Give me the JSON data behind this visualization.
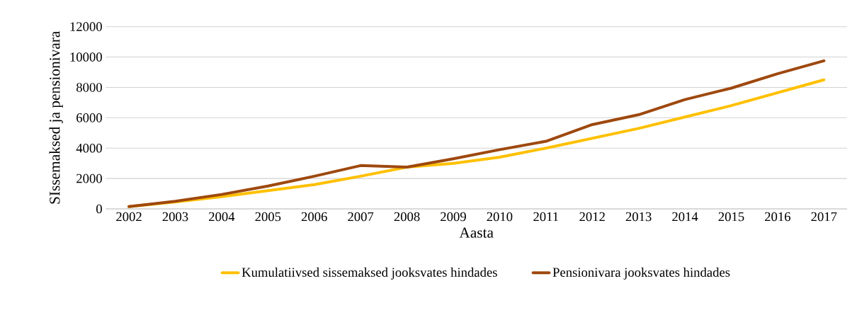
{
  "chart_data": {
    "type": "line",
    "xlabel": "Aasta",
    "ylabel": "SIssemaksed ja pensionivara",
    "categories": [
      "2002",
      "2003",
      "2004",
      "2005",
      "2006",
      "2007",
      "2008",
      "2009",
      "2010",
      "2011",
      "2012",
      "2013",
      "2014",
      "2015",
      "2016",
      "2017"
    ],
    "series": [
      {
        "name": "Kumulatiivsed sissemaksed jooksvates hindades",
        "color": "#ffc000",
        "values": [
          150,
          450,
          800,
          1200,
          1600,
          2150,
          2750,
          3000,
          3400,
          4000,
          4650,
          5300,
          6050,
          6800,
          7650,
          8500
        ]
      },
      {
        "name": "Pensionivara jooksvates hindades",
        "color": "#9e480e",
        "values": [
          150,
          500,
          950,
          1500,
          2150,
          2850,
          2750,
          3300,
          3900,
          4450,
          5550,
          6200,
          7200,
          7950,
          8900,
          9750
        ]
      }
    ],
    "ylim": [
      0,
      12000
    ],
    "yticks": [
      0,
      2000,
      4000,
      6000,
      8000,
      10000,
      12000
    ],
    "grid": "y",
    "legend": "bottom",
    "marker": "none",
    "line_style": "solid"
  }
}
